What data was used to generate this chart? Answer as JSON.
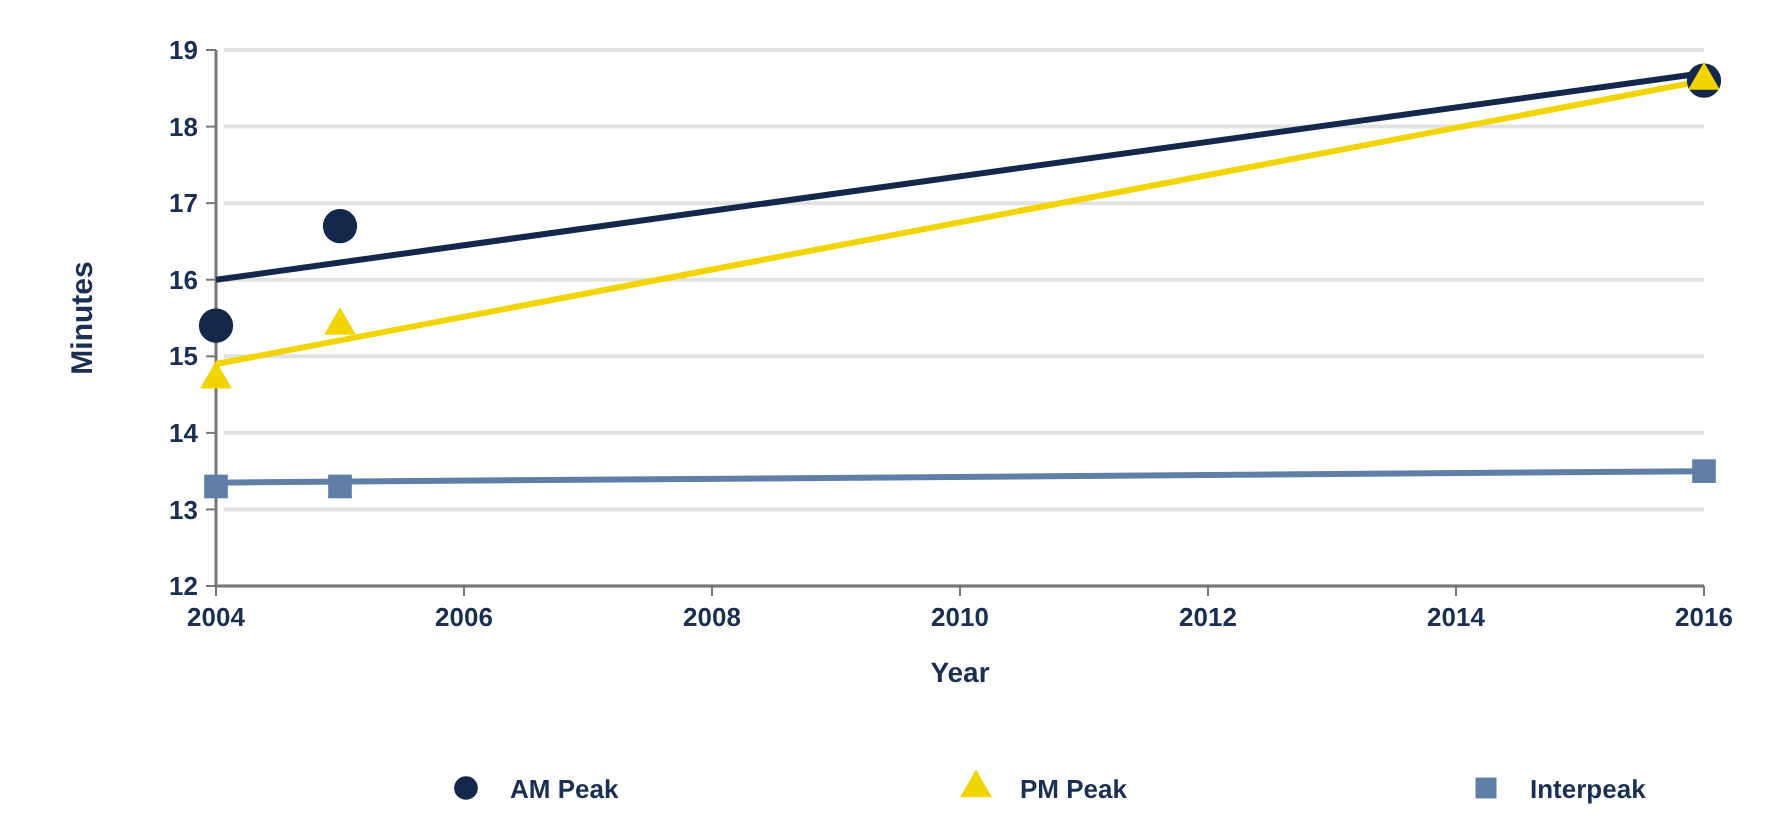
{
  "chart_data": {
    "type": "scatter",
    "xlabel": "Year",
    "ylabel": "Minutes",
    "xlim": [
      2004,
      2016
    ],
    "xticks": [
      2004,
      2006,
      2008,
      2010,
      2012,
      2014,
      2016
    ],
    "ylim": [
      12,
      19
    ],
    "yticks": [
      12,
      13,
      14,
      15,
      16,
      17,
      18,
      19
    ],
    "grid": "y",
    "legend": "bottom",
    "series": [
      {
        "name": "AM Peak",
        "color": "#14284b",
        "marker": "circle",
        "x": [
          2004,
          2005,
          2016
        ],
        "values": [
          15.4,
          16.7,
          18.6
        ]
      },
      {
        "name": "PM Peak",
        "color": "#f2d500",
        "marker": "triangle",
        "x": [
          2004,
          2005,
          2016
        ],
        "values": [
          14.7,
          15.4,
          18.6
        ]
      },
      {
        "name": "Interpeak",
        "color": "#5f7fa6",
        "marker": "square",
        "x": [
          2004,
          2005,
          2016
        ],
        "values": [
          13.3,
          13.3,
          13.5
        ]
      },
      {
        "type": "line",
        "color": "#14284b",
        "marker": "none",
        "x": [
          2004,
          2016
        ],
        "values": [
          16.0,
          18.7
        ]
      },
      {
        "type": "line",
        "color": "#f2d500",
        "marker": "none",
        "x": [
          2004,
          2016
        ],
        "values": [
          14.9,
          18.6
        ]
      },
      {
        "type": "line",
        "color": "#5f7fa6",
        "marker": "none",
        "x": [
          2004,
          2016
        ],
        "values": [
          13.35,
          13.5
        ]
      }
    ]
  }
}
